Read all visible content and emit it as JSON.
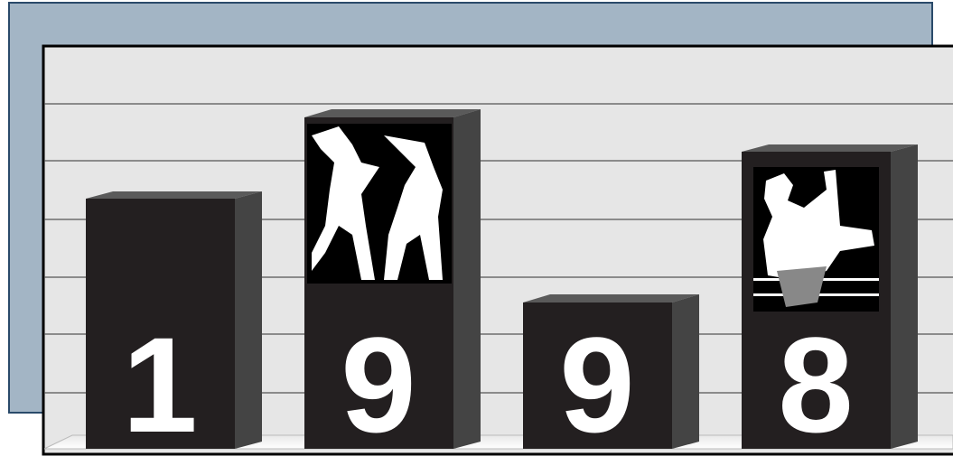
{
  "digits": [
    "1",
    "9",
    "9",
    "8"
  ]
}
